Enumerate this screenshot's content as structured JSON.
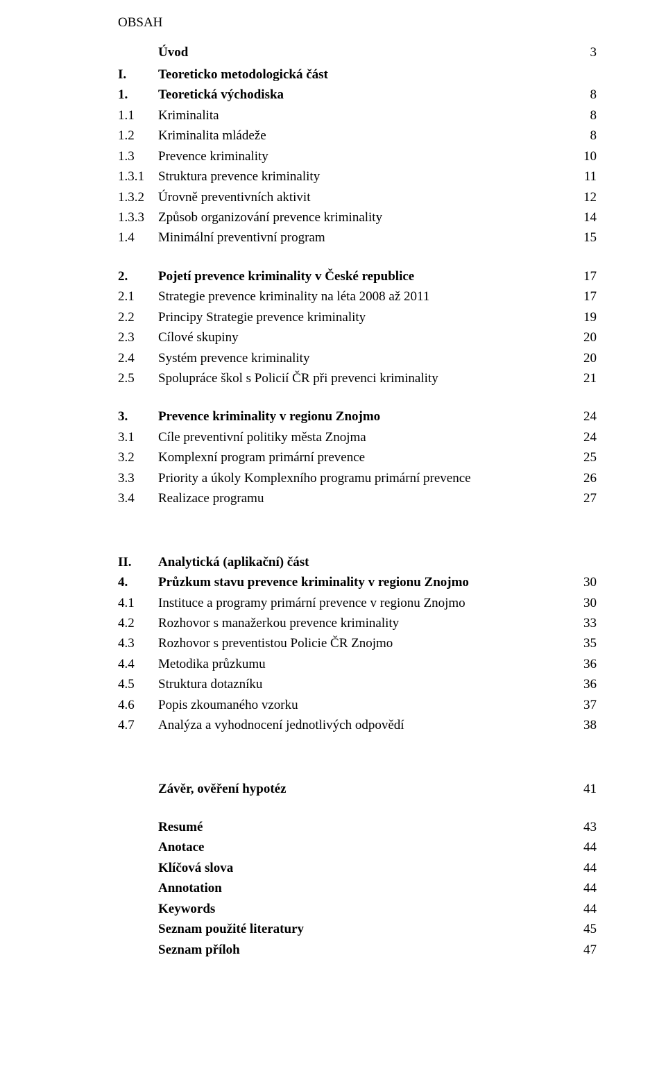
{
  "header": "OBSAH",
  "intro": {
    "label": "Úvod",
    "page": "3"
  },
  "partI": {
    "num": "I.",
    "title": "Teoreticko metodologická část",
    "s1": {
      "num": "1.",
      "title": "Teoretická východiska",
      "page": "8",
      "i1": {
        "num": "1.1",
        "label": "Kriminalita",
        "page": "8"
      },
      "i2": {
        "num": "1.2",
        "label": "Kriminalita mládeže",
        "page": "8"
      },
      "i3": {
        "num": "1.3",
        "label": "Prevence kriminality",
        "page": "10"
      },
      "i4": {
        "num": "1.3.1",
        "label": "Struktura prevence kriminality",
        "page": "11"
      },
      "i5": {
        "num": "1.3.2",
        "label": "Úrovně preventivních aktivit",
        "page": "12"
      },
      "i6": {
        "num": "1.3.3",
        "label": "Způsob organizování prevence kriminality",
        "page": "14"
      },
      "i7": {
        "num": "1.4",
        "label": "Minimální preventivní program",
        "page": "15"
      }
    },
    "s2": {
      "num": "2.",
      "title": "Pojetí prevence kriminality v České republice",
      "page": "17",
      "i1": {
        "num": "2.1",
        "label": "Strategie prevence kriminality na léta 2008 až 2011",
        "page": "17"
      },
      "i2": {
        "num": "2.2",
        "label": "Principy Strategie prevence kriminality",
        "page": "19"
      },
      "i3": {
        "num": "2.3",
        "label": "Cílové skupiny",
        "page": "20"
      },
      "i4": {
        "num": "2.4",
        "label": "Systém prevence kriminality",
        "page": "20"
      },
      "i5": {
        "num": "2.5",
        "label": "Spolupráce škol s Policií ČR při prevenci kriminality",
        "page": "21"
      }
    },
    "s3": {
      "num": "3.",
      "title": "Prevence kriminality v regionu Znojmo",
      "page": "24",
      "i1": {
        "num": "3.1",
        "label": "Cíle preventivní politiky města Znojma",
        "page": "24"
      },
      "i2": {
        "num": "3.2",
        "label": "Komplexní program primární prevence",
        "page": "25"
      },
      "i3": {
        "num": "3.3",
        "label": "Priority a úkoly Komplexního programu primární prevence",
        "page": "26"
      },
      "i4": {
        "num": "3.4",
        "label": "Realizace programu",
        "page": "27"
      }
    }
  },
  "partII": {
    "num": "II.",
    "title": "Analytická (aplikační) část",
    "s4": {
      "num": "4.",
      "title": "Průzkum stavu prevence kriminality v regionu Znojmo",
      "page": "30",
      "i1": {
        "num": "4.1",
        "label": "Instituce a programy primární prevence v regionu Znojmo",
        "page": "30"
      },
      "i2": {
        "num": "4.2",
        "label": "Rozhovor s manažerkou prevence kriminality",
        "page": "33"
      },
      "i3": {
        "num": "4.3",
        "label": "Rozhovor s preventistou Policie ČR Znojmo",
        "page": "35"
      },
      "i4": {
        "num": "4.4",
        "label": "Metodika průzkumu",
        "page": "36"
      },
      "i5": {
        "num": "4.5",
        "label": "Struktura dotazníku",
        "page": "36"
      },
      "i6": {
        "num": "4.6",
        "label": "Popis zkoumaného vzorku",
        "page": "37"
      },
      "i7": {
        "num": "4.7",
        "label": "Analýza a vyhodnocení jednotlivých odpovědí",
        "page": "38"
      }
    }
  },
  "closing": {
    "i1": {
      "label": "Závěr, ověření hypotéz",
      "page": "41"
    },
    "i2": {
      "label": "Resumé",
      "page": "43"
    },
    "i3": {
      "label": "Anotace",
      "page": "44"
    },
    "i4": {
      "label": "Klíčová slova",
      "page": "44"
    },
    "i5": {
      "label": "Annotation",
      "page": "44"
    },
    "i6": {
      "label": "Keywords",
      "page": "44"
    },
    "i7": {
      "label": "Seznam použité literatury",
      "page": "45"
    },
    "i8": {
      "label": "Seznam příloh",
      "page": "47"
    }
  }
}
